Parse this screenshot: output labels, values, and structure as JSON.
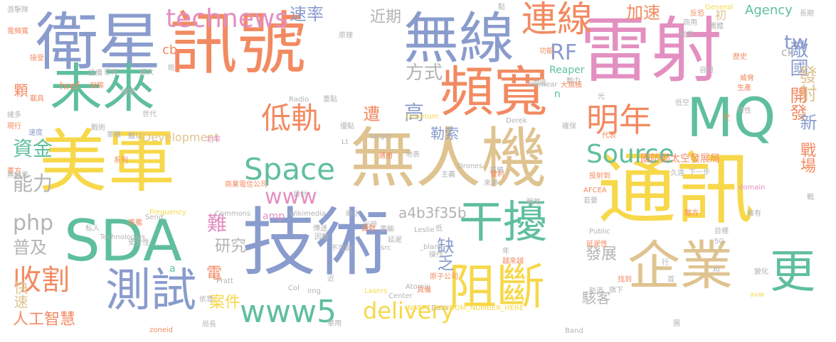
{
  "palette": {
    "orange": "#f28a61",
    "teal": "#5fbf9d",
    "blue": "#8a9ccd",
    "pink": "#e38fc1",
    "yellow": "#f7d84a",
    "tan": "#dfc390",
    "gray": "#b3b3b3",
    "lime": "#a9d65e"
  },
  "words": [
    {
      "text": "訊號",
      "color": "orange"
    },
    {
      "text": "雷射",
      "color": "pink"
    },
    {
      "text": "衛星",
      "color": "blue"
    },
    {
      "text": "無線",
      "color": "blue"
    },
    {
      "text": "未來",
      "color": "teal"
    },
    {
      "text": "頻寬",
      "color": "orange"
    },
    {
      "text": "美軍",
      "color": "yellow"
    },
    {
      "text": "無人機",
      "color": "tan"
    },
    {
      "text": "通訊",
      "color": "yellow"
    },
    {
      "text": "技術",
      "color": "blue"
    },
    {
      "text": "SDA",
      "color": "teal"
    },
    {
      "text": "MQ",
      "color": "teal"
    },
    {
      "text": "企業",
      "color": "tan"
    },
    {
      "text": "干擾",
      "color": "teal"
    },
    {
      "text": "阻斷",
      "color": "yellow"
    },
    {
      "text": "測試",
      "color": "blue"
    },
    {
      "text": "更",
      "color": "teal"
    },
    {
      "text": "Space",
      "color": "teal"
    },
    {
      "text": "technews",
      "color": "pink"
    },
    {
      "text": "連線",
      "color": "orange"
    },
    {
      "text": "低軌",
      "color": "orange"
    },
    {
      "text": "明年",
      "color": "orange"
    },
    {
      "text": "Source",
      "color": "teal"
    },
    {
      "text": "www5",
      "color": "teal"
    },
    {
      "text": "收割",
      "color": "orange"
    },
    {
      "text": "delivery",
      "color": "yellow"
    },
    {
      "text": "資金",
      "color": "teal"
    },
    {
      "text": "能力",
      "color": "gray"
    },
    {
      "text": "php",
      "color": "gray"
    },
    {
      "text": "普及",
      "color": "gray"
    },
    {
      "text": "顆",
      "color": "orange"
    },
    {
      "text": "快速",
      "color": "tan"
    },
    {
      "text": "人工智慧",
      "color": "orange"
    },
    {
      "text": "方式",
      "color": "gray"
    },
    {
      "text": "RF",
      "color": "blue"
    },
    {
      "text": "速率",
      "color": "blue"
    },
    {
      "text": "近期",
      "color": "gray"
    },
    {
      "text": "高",
      "color": "blue"
    },
    {
      "text": "遭",
      "color": "orange"
    },
    {
      "text": "勒索",
      "color": "blue"
    },
    {
      "text": "www",
      "color": "pink"
    },
    {
      "text": "難",
      "color": "pink"
    },
    {
      "text": "缺乏",
      "color": "blue"
    },
    {
      "text": "研究",
      "color": "gray"
    },
    {
      "text": "案件",
      "color": "yellow"
    },
    {
      "text": "電",
      "color": "orange"
    },
    {
      "text": "發展",
      "color": "gray"
    },
    {
      "text": "駭客",
      "color": "gray"
    },
    {
      "text": "加速",
      "color": "orange"
    },
    {
      "text": "Agency",
      "color": "teal"
    },
    {
      "text": "tw",
      "color": "blue"
    },
    {
      "text": "敵國",
      "color": "blue"
    },
    {
      "text": "發射",
      "color": "tan"
    },
    {
      "text": "開發",
      "color": "orange"
    },
    {
      "text": "新",
      "color": "blue"
    },
    {
      "text": "戰場",
      "color": "orange"
    },
    {
      "text": "國防部太空發展局",
      "color": "orange"
    },
    {
      "text": "a4b3f35b",
      "color": "gray"
    },
    {
      "text": "Reaper",
      "color": "teal"
    },
    {
      "text": "Development",
      "color": "tan"
    },
    {
      "text": "cb",
      "color": "orange"
    },
    {
      "text": "href",
      "color": "orange"
    },
    {
      "text": "ck",
      "color": "gray"
    },
    {
      "text": "n",
      "color": "teal"
    },
    {
      "text": "a",
      "color": "teal"
    },
    {
      "text": "amp",
      "color": "pink"
    },
    {
      "text": "初",
      "color": "tan"
    },
    {
      "text": "游擊隊",
      "color": "gray"
    },
    {
      "text": "電頻寬",
      "color": "orange"
    },
    {
      "text": "接受",
      "color": "orange"
    },
    {
      "text": "設備",
      "color": "gray"
    },
    {
      "text": "擴大",
      "color": "gray"
    },
    {
      "text": "恐怖",
      "color": "gray"
    },
    {
      "text": "晤",
      "color": "gray"
    },
    {
      "text": "頻率",
      "color": "gray"
    },
    {
      "text": "保障",
      "color": "orange"
    },
    {
      "text": "載具",
      "color": "orange"
    },
    {
      "text": "諸多",
      "color": "gray"
    },
    {
      "text": "世代",
      "color": "gray"
    },
    {
      "text": "現行",
      "color": "orange"
    },
    {
      "text": "戰術",
      "color": "gray"
    },
    {
      "text": "軍機",
      "color": "gray"
    },
    {
      "text": "難以",
      "color": "gray"
    },
    {
      "text": "速度",
      "color": "blue"
    },
    {
      "text": "功率",
      "color": "pink"
    },
    {
      "text": "系列",
      "color": "orange"
    },
    {
      "text": "軍方",
      "color": "orange"
    },
    {
      "text": "無線電",
      "color": "gray"
    },
    {
      "text": "軍艦",
      "color": "orange"
    },
    {
      "text": "私人",
      "color": "gray"
    },
    {
      "text": "Technologies",
      "color": "gray"
    },
    {
      "text": "Send",
      "color": "gray"
    },
    {
      "text": "Frequency",
      "color": "yellow"
    },
    {
      "text": "Commons",
      "color": "gray"
    },
    {
      "text": "Wikimedia",
      "color": "gray"
    },
    {
      "text": "縮小",
      "color": "gray"
    },
    {
      "text": "商業電信公司",
      "color": "orange"
    },
    {
      "text": "設計",
      "color": "gray"
    },
    {
      "text": "傳送",
      "color": "gray"
    },
    {
      "text": "因難",
      "color": "gray"
    },
    {
      "text": "光學",
      "color": "gray"
    },
    {
      "text": "車輛",
      "color": "gray"
    },
    {
      "text": "延遲",
      "color": "gray"
    },
    {
      "text": "src",
      "color": "gray"
    },
    {
      "text": "Leslie",
      "color": "gray"
    },
    {
      "text": "面對",
      "color": "orange"
    },
    {
      "text": "_blank",
      "color": "gray"
    },
    {
      "text": "不可能",
      "color": "gray"
    },
    {
      "text": "低",
      "color": "gray"
    },
    {
      "text": "年",
      "color": "gray"
    },
    {
      "text": "越來越",
      "color": "orange"
    },
    {
      "text": "操作",
      "color": "gray"
    },
    {
      "text": "安全性",
      "color": "gray"
    },
    {
      "text": "Pratt",
      "color": "gray"
    },
    {
      "text": "Col",
      "color": "gray"
    },
    {
      "text": "img",
      "color": "gray"
    },
    {
      "text": "近",
      "color": "gray"
    },
    {
      "text": "依靠",
      "color": "gray"
    },
    {
      "text": "Lasers",
      "color": "yellow"
    },
    {
      "text": "Atomic",
      "color": "gray"
    },
    {
      "text": "Center",
      "color": "gray"
    },
    {
      "text": "具備",
      "color": "orange"
    },
    {
      "text": "Data",
      "color": "gray"
    },
    {
      "text": "INSERT_RANDOM_NUMBER_HERE",
      "color": "yellow"
    },
    {
      "text": "原子公司",
      "color": "orange"
    },
    {
      "text": "zoneid",
      "color": "orange"
    },
    {
      "text": "局長",
      "color": "gray"
    },
    {
      "text": "軍用",
      "color": "gray"
    },
    {
      "text": "Band",
      "color": "gray"
    },
    {
      "text": "圖",
      "color": "gray"
    },
    {
      "text": "長期",
      "color": "gray"
    },
    {
      "text": "General",
      "color": "yellow"
    },
    {
      "text": "點",
      "color": "gray"
    },
    {
      "text": "原理",
      "color": "gray"
    },
    {
      "text": "戰爭",
      "color": "gray"
    },
    {
      "text": "反恐",
      "color": "orange"
    },
    {
      "text": "團體",
      "color": "gray"
    },
    {
      "text": "商用",
      "color": "gray"
    },
    {
      "text": "功能",
      "color": "orange"
    },
    {
      "text": "動力",
      "color": "gray"
    },
    {
      "text": "周邊",
      "color": "gray"
    },
    {
      "text": "歷史",
      "color": "orange"
    },
    {
      "text": "自用",
      "color": "gray"
    },
    {
      "text": "威脅",
      "color": "orange"
    },
    {
      "text": "生產",
      "color": "orange"
    },
    {
      "text": "Tournear",
      "color": "gray"
    },
    {
      "text": "大規模",
      "color": "orange"
    },
    {
      "text": "低空",
      "color": "gray"
    },
    {
      "text": "空",
      "color": "orange"
    },
    {
      "text": "Derek",
      "color": "gray"
    },
    {
      "text": "光",
      "color": "gray"
    },
    {
      "text": "優點",
      "color": "gray"
    },
    {
      "text": "Radio",
      "color": "gray"
    },
    {
      "text": "重點",
      "color": "gray"
    },
    {
      "text": "Quantum",
      "color": "yellow"
    },
    {
      "text": "確保",
      "color": "gray"
    },
    {
      "text": "target",
      "color": "gray"
    },
    {
      "text": "代表",
      "color": "orange"
    },
    {
      "text": "特性",
      "color": "gray"
    },
    {
      "text": "下一步",
      "color": "gray"
    },
    {
      "text": "Lt",
      "color": "gray"
    },
    {
      "text": "通用",
      "color": "orange"
    },
    {
      "text": "地表",
      "color": "gray"
    },
    {
      "text": "遠勝",
      "color": "gray"
    },
    {
      "text": "Drones",
      "color": "gray"
    },
    {
      "text": "雙利",
      "color": "orange"
    },
    {
      "text": "主義",
      "color": "gray"
    },
    {
      "text": "來源",
      "color": "gray"
    },
    {
      "text": "投射到",
      "color": "orange"
    },
    {
      "text": "久遠",
      "color": "gray"
    },
    {
      "text": "domain",
      "color": "pink"
    },
    {
      "text": "AFCEA",
      "color": "orange"
    },
    {
      "text": "若要",
      "color": "gray"
    },
    {
      "text": "戰略",
      "color": "gray"
    },
    {
      "text": "戰",
      "color": "gray"
    },
    {
      "text": "敵方",
      "color": "orange"
    },
    {
      "text": "擁有",
      "color": "gray"
    },
    {
      "text": "Public",
      "color": "gray"
    },
    {
      "text": "目標",
      "color": "gray"
    },
    {
      "text": "延遲性",
      "color": "orange"
    },
    {
      "text": "5G",
      "color": "gray"
    },
    {
      "text": "行",
      "color": "gray"
    },
    {
      "text": "首",
      "color": "gray"
    },
    {
      "text": "AI",
      "color": "gray"
    },
    {
      "text": "找到",
      "color": "orange"
    },
    {
      "text": "變化",
      "color": "gray"
    },
    {
      "text": "旗下",
      "color": "gray"
    },
    {
      "text": "軌道",
      "color": "gray"
    },
    {
      "text": "avw",
      "color": "yellow"
    }
  ]
}
